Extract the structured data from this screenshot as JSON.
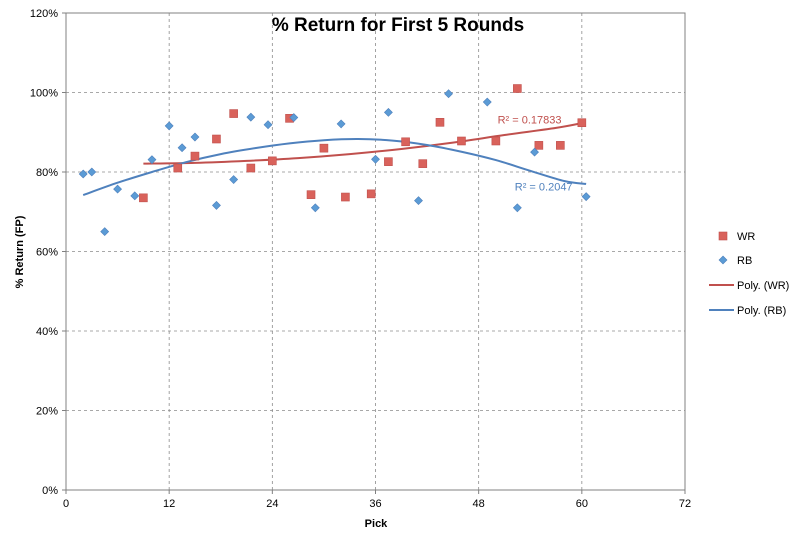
{
  "chart_data": {
    "type": "scatter",
    "title": "% Return for First 5 Rounds",
    "xlabel": "Pick",
    "ylabel": "% Return (FP)",
    "xlim": [
      0,
      72
    ],
    "ylim": [
      0,
      120
    ],
    "xticks": [
      "0",
      "12",
      "24",
      "36",
      "48",
      "60",
      "72"
    ],
    "yticks": [
      "0%",
      "20%",
      "40%",
      "60%",
      "80%",
      "100%",
      "120%"
    ],
    "grid": true,
    "legend_position": "right",
    "series": [
      {
        "name": "WR",
        "marker": "square",
        "color": "#d9625b",
        "points": [
          [
            9,
            73.5
          ],
          [
            13,
            81
          ],
          [
            15,
            84
          ],
          [
            17.5,
            88.3
          ],
          [
            19.5,
            94.7
          ],
          [
            21.5,
            81
          ],
          [
            24,
            82.8
          ],
          [
            26,
            93.5
          ],
          [
            28.5,
            74.3
          ],
          [
            30,
            86
          ],
          [
            32.5,
            73.7
          ],
          [
            35.5,
            74.5
          ],
          [
            37.5,
            82.6
          ],
          [
            39.5,
            87.6
          ],
          [
            41.5,
            82.1
          ],
          [
            43.5,
            92.5
          ],
          [
            46,
            87.8
          ],
          [
            50,
            87.8
          ],
          [
            52.5,
            101
          ],
          [
            55,
            86.7
          ],
          [
            57.5,
            86.7
          ],
          [
            60,
            92.4
          ]
        ]
      },
      {
        "name": "RB",
        "marker": "diamond",
        "color": "#5b9bd5",
        "points": [
          [
            2,
            79.5
          ],
          [
            3,
            80
          ],
          [
            4.5,
            65
          ],
          [
            6,
            75.7
          ],
          [
            8,
            74
          ],
          [
            10,
            83.1
          ],
          [
            12,
            91.6
          ],
          [
            13.5,
            86.1
          ],
          [
            15,
            88.8
          ],
          [
            17.5,
            71.6
          ],
          [
            19.5,
            78.1
          ],
          [
            21.5,
            93.8
          ],
          [
            23.5,
            91.9
          ],
          [
            26.5,
            93.7
          ],
          [
            29,
            71
          ],
          [
            32,
            92.1
          ],
          [
            36,
            83.2
          ],
          [
            37.5,
            95
          ],
          [
            41,
            72.8
          ],
          [
            44.5,
            99.7
          ],
          [
            49,
            97.6
          ],
          [
            52.5,
            71
          ],
          [
            54.5,
            85
          ],
          [
            60.5,
            73.8
          ]
        ]
      }
    ],
    "trendlines": [
      {
        "name": "Poly. (WR)",
        "series": "WR",
        "color": "#c0504d",
        "r_squared_label": "R² = 0.17833",
        "x": [
          9,
          15,
          21,
          27,
          33,
          39,
          45,
          51,
          57,
          60
        ],
        "y": [
          82.1,
          82.3,
          82.8,
          83.5,
          84.5,
          85.8,
          87.4,
          89.3,
          91.1,
          92.3
        ]
      },
      {
        "name": "Poly. (RB)",
        "series": "RB",
        "color": "#4f81bd",
        "r_squared_label": "R² = 0.2047",
        "x": [
          2,
          6,
          10,
          14,
          18,
          22,
          26,
          30,
          34,
          38,
          42,
          46,
          50,
          54,
          58,
          60.5
        ],
        "y": [
          74.2,
          77.3,
          80.0,
          82.5,
          84.5,
          86.0,
          87.2,
          88.0,
          88.3,
          87.9,
          86.8,
          85.1,
          83.0,
          80.3,
          77.7,
          77.0
        ]
      }
    ],
    "legend": [
      "WR",
      "RB",
      "Poly. (WR)",
      "Poly. (RB)"
    ]
  }
}
